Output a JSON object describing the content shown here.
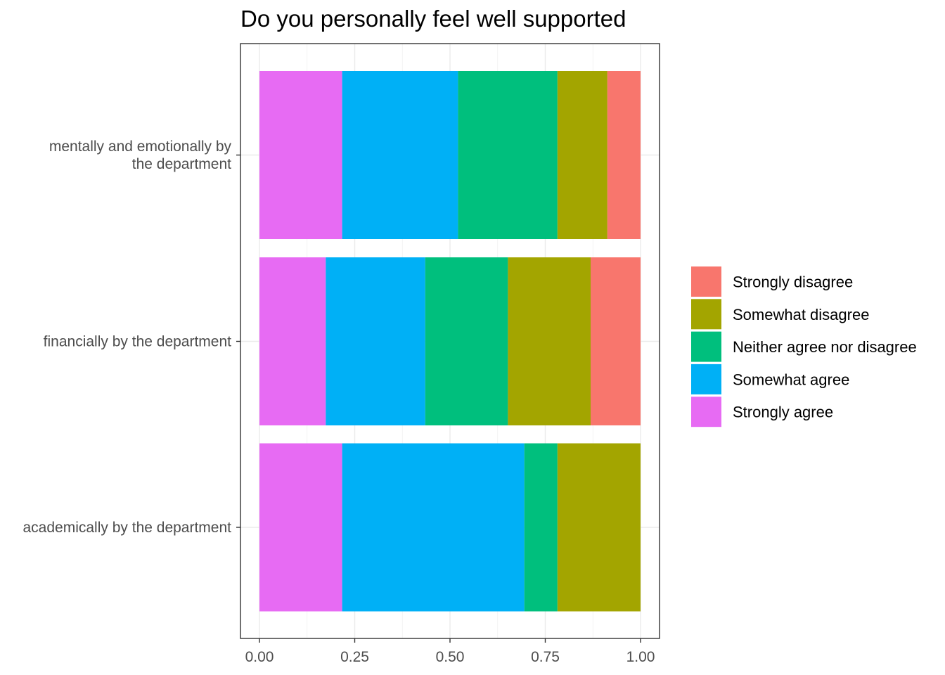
{
  "chart_data": {
    "type": "bar",
    "orientation": "horizontal",
    "stacked": true,
    "title": "Do you personally feel well supported",
    "xlabel": "",
    "ylabel": "",
    "xlim": [
      0,
      1
    ],
    "x_ticks": [
      "0.00",
      "0.25",
      "0.50",
      "0.75",
      "1.00"
    ],
    "x_tick_values": [
      0,
      0.25,
      0.5,
      0.75,
      1
    ],
    "grid": true,
    "legend_position": "right",
    "categories": [
      [
        "mentally and emotionally by",
        "the department"
      ],
      [
        "financially by the department"
      ],
      [
        "academically by the department"
      ]
    ],
    "series": [
      {
        "name": "Strongly agree",
        "color": "#E76BF3",
        "values": [
          0.217,
          0.174,
          0.217
        ]
      },
      {
        "name": "Somewhat agree",
        "color": "#00B0F6",
        "values": [
          0.304,
          0.261,
          0.478
        ]
      },
      {
        "name": "Neither agree nor disagree",
        "color": "#00BF7D",
        "values": [
          0.261,
          0.217,
          0.087
        ]
      },
      {
        "name": "Somewhat disagree",
        "color": "#A3A500",
        "values": [
          0.131,
          0.217,
          0.218
        ]
      },
      {
        "name": "Strongly disagree",
        "color": "#F8766D",
        "values": [
          0.087,
          0.131,
          0
        ]
      }
    ],
    "legend_order": [
      "Strongly disagree",
      "Somewhat disagree",
      "Neither agree nor disagree",
      "Somewhat agree",
      "Strongly agree"
    ]
  }
}
